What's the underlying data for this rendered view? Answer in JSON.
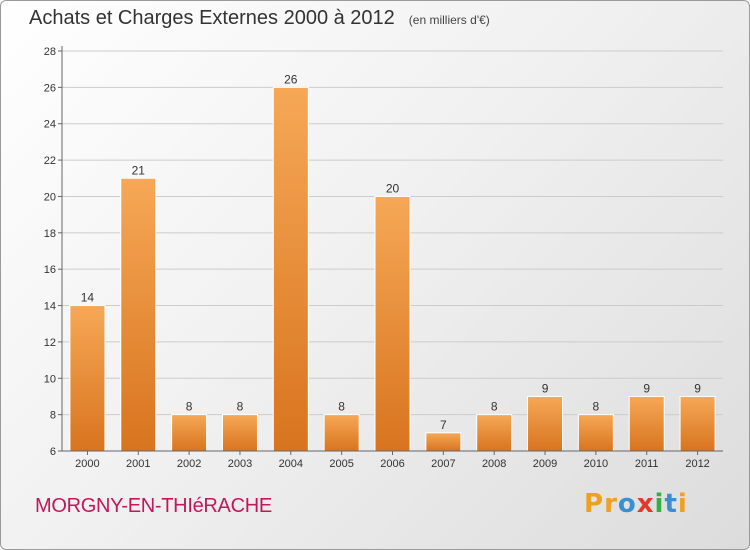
{
  "header": {
    "title": "Achats et Charges Externes 2000 à 2012",
    "unit": "(en milliers d'€)"
  },
  "footer": {
    "commune": "MORGNY-EN-THIéRACHE",
    "logo_letters": [
      "P",
      "r",
      "o",
      "x",
      "i",
      "t",
      "i"
    ],
    "logo_colors": [
      "#f0a020",
      "#f0a020",
      "#3a8fd0",
      "#e03a2a",
      "#30b040",
      "#3a8fd0",
      "#f0a020"
    ]
  },
  "colors": {
    "bar_light": "#f6a856",
    "bar_dark": "#d8741f",
    "grid": "#cccccc",
    "axis": "#666666"
  },
  "chart_data": {
    "type": "bar",
    "title": "Achats et Charges Externes 2000 à 2012",
    "subtitle": "(en milliers d'€)",
    "xlabel": "",
    "ylabel": "",
    "categories": [
      "2000",
      "2001",
      "2002",
      "2003",
      "2004",
      "2005",
      "2006",
      "2007",
      "2008",
      "2009",
      "2010",
      "2011",
      "2012"
    ],
    "values": [
      14,
      21,
      8,
      8,
      26,
      8,
      20,
      7,
      8,
      9,
      8,
      9,
      9
    ],
    "ylim": [
      6,
      28
    ],
    "yticks": [
      6,
      8,
      10,
      12,
      14,
      16,
      18,
      20,
      22,
      24,
      26,
      28
    ],
    "grid": true,
    "data_labels": true
  }
}
